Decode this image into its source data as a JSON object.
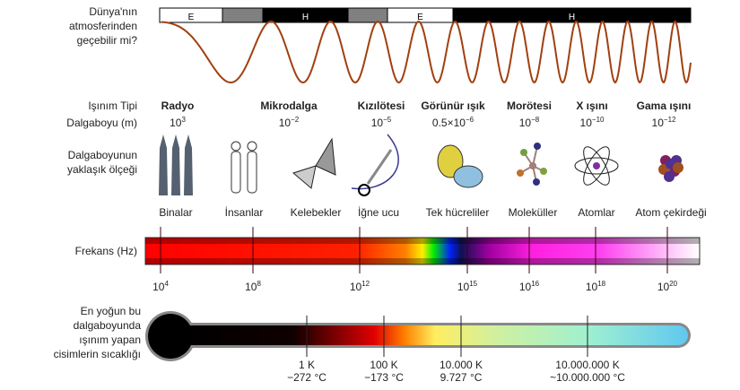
{
  "left_labels": {
    "atmosphere": [
      "Dünya'nın",
      "atmosferinden",
      "geçebilir mi?"
    ],
    "type": "Işınım Tipi",
    "wavelength": "Dalgaboyu (m)",
    "scale": [
      "Dalgaboyunun",
      "yaklaşık ölçeği"
    ],
    "frequency": "Frekans (Hz)",
    "temperature": [
      "En yoğun bu",
      "dalgaboyunda",
      "ışınım yapan",
      "cisimlerin sıcaklığı"
    ]
  },
  "atmosphere_segments": [
    {
      "label": "E",
      "fill": "#ffffff"
    },
    {
      "label": "",
      "fill": "#808080"
    },
    {
      "label": "H",
      "fill": "#000000"
    },
    {
      "label": "",
      "fill": "#808080"
    },
    {
      "label": "E",
      "fill": "#ffffff"
    },
    {
      "label": "H",
      "fill": "#000000"
    }
  ],
  "radiation_types": [
    {
      "name": "Radyo",
      "wavelength_base": "10",
      "wavelength_exp": "3"
    },
    {
      "name": "Mikrodalga",
      "wavelength_base": "10",
      "wavelength_exp": "−2"
    },
    {
      "name": "Kızılötesi",
      "wavelength_base": "10",
      "wavelength_exp": "−5"
    },
    {
      "name": "Görünür ışık",
      "wavelength_base": "0.5×10",
      "wavelength_exp": "−6"
    },
    {
      "name": "Morötesi",
      "wavelength_base": "10",
      "wavelength_exp": "−8"
    },
    {
      "name": "X ışını",
      "wavelength_base": "10",
      "wavelength_exp": "−10"
    },
    {
      "name": "Gama ışını",
      "wavelength_base": "10",
      "wavelength_exp": "−12"
    }
  ],
  "scale_objects": [
    "Binalar",
    "İnsanlar",
    "Kelebekler",
    "İğne ucu",
    "Tek hücreliler",
    "Moleküller",
    "Atomlar",
    "Atom çekirdeği"
  ],
  "scale_icons": [
    "buildings-icon",
    "humans-icon",
    "butterfly-icon",
    "needle-icon",
    "cell-icon",
    "molecule-icon",
    "atom-icon",
    "nucleus-icon"
  ],
  "frequency_ticks": [
    {
      "base": "10",
      "exp": "4"
    },
    {
      "base": "10",
      "exp": "8"
    },
    {
      "base": "10",
      "exp": "12"
    },
    {
      "base": "10",
      "exp": "15"
    },
    {
      "base": "10",
      "exp": "16"
    },
    {
      "base": "10",
      "exp": "18"
    },
    {
      "base": "10",
      "exp": "20"
    }
  ],
  "temperature_ticks": [
    {
      "k": "1 K",
      "c": "−272 °C"
    },
    {
      "k": "100 K",
      "c": "−173 °C"
    },
    {
      "k": "10.000 K",
      "c": "9.727 °C"
    },
    {
      "k": "10.000.000 K",
      "c": "~10.000.000 °C"
    }
  ]
}
